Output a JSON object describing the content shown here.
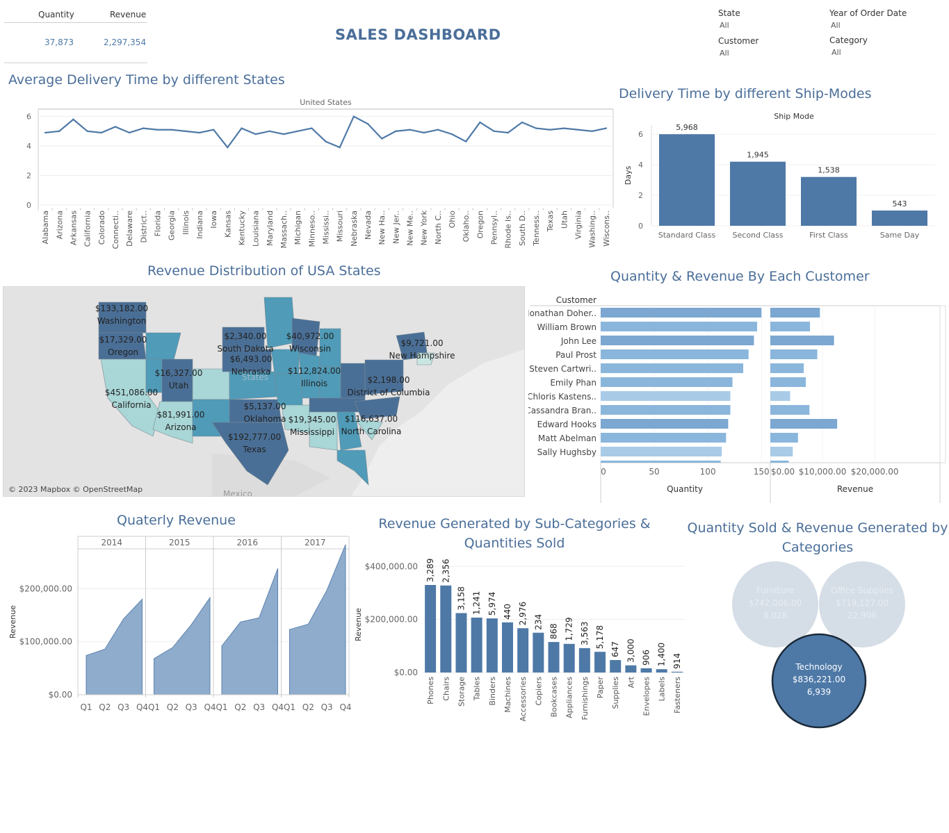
{
  "kpi": {
    "quantity_label": "Quantity",
    "revenue_label": "Revenue",
    "quantity_value": "37,873",
    "revenue_value": "2,297,354"
  },
  "title": "SALES DASHBOARD",
  "filters": [
    {
      "label": "State",
      "value": "All"
    },
    {
      "label": "Year of Order Date",
      "value": "All"
    },
    {
      "label": "Customer",
      "value": "All"
    },
    {
      "label": "Category",
      "value": "All"
    }
  ],
  "delivery_states": {
    "section_title": "Average Delivery Time by different States",
    "chart_data": {
      "type": "line",
      "header": "United States",
      "ylim": [
        0,
        6.5
      ],
      "yticks": [
        0,
        2,
        4,
        6
      ],
      "categories": [
        "Alabama",
        "Arizona",
        "Arkansas",
        "California",
        "Colorado",
        "Connecti..",
        "Delaware",
        "District..",
        "Florida",
        "Georgia",
        "Illinois",
        "Indiana",
        "Iowa",
        "Kansas",
        "Kentucky",
        "Louisiana",
        "Maryland",
        "Massach..",
        "Michigan",
        "Minneso..",
        "Mississi..",
        "Missouri",
        "Nebraska",
        "Nevada",
        "New Ha..",
        "New Jer..",
        "New Me..",
        "New York",
        "North C..",
        "Ohio",
        "Oklaho..",
        "Oregon",
        "Pennsyl..",
        "Rhode Is..",
        "South D..",
        "Tenness..",
        "Texas",
        "Utah",
        "Virginia",
        "Washing..",
        "Wiscons.."
      ],
      "values": [
        4.9,
        5.0,
        5.8,
        5.0,
        4.9,
        5.3,
        4.9,
        5.2,
        5.1,
        5.1,
        5.0,
        4.9,
        5.1,
        3.9,
        5.2,
        4.8,
        5.0,
        4.8,
        5.0,
        5.2,
        4.3,
        3.9,
        6.0,
        5.5,
        4.5,
        5.0,
        5.1,
        4.9,
        5.1,
        4.8,
        4.3,
        5.6,
        5.0,
        4.9,
        5.6,
        5.2,
        5.1,
        5.2,
        5.1,
        5.0,
        5.2
      ],
      "color": "#4e79a7"
    }
  },
  "ship_modes": {
    "section_title": "Delivery Time by different Ship-Modes",
    "chart_data": {
      "type": "bar",
      "header": "Ship Mode",
      "ylabel": "Days",
      "categories": [
        "Standard Class",
        "Second Class",
        "First Class",
        "Same Day"
      ],
      "values": [
        6.0,
        4.2,
        3.2,
        1.0
      ],
      "labels": [
        "5,968",
        "1,945",
        "1,538",
        "543"
      ],
      "ylim": [
        0,
        6.6
      ],
      "yticks": [
        0,
        2,
        4,
        6
      ],
      "color": "#4e79a7"
    }
  },
  "map": {
    "section_title": "Revenue Distribution of USA States",
    "labels": [
      {
        "value": "$133,182.00",
        "state": "Washington"
      },
      {
        "value": "$17,329.00",
        "state": "Oregon"
      },
      {
        "value": "$2,340.00",
        "state": "South Dakota"
      },
      {
        "value": "$40,972.00",
        "state": "Wisconsin"
      },
      {
        "value": "$9,721.00",
        "state": "New Hampshire"
      },
      {
        "value": "$6,493.00",
        "state": "Nebraska"
      },
      {
        "value": "$16,327.00",
        "state": "Utah"
      },
      {
        "value": "$112,824.00",
        "state": "Illinois"
      },
      {
        "value": "$2,198.00",
        "state": "District of Columbia"
      },
      {
        "value": "$451,086.00",
        "state": "California"
      },
      {
        "value": "$5,137.00",
        "state": "Oklahoma"
      },
      {
        "value": "$116,637.00",
        "state": "North Carolina"
      },
      {
        "value": "$81,991.00",
        "state": "Arizona"
      },
      {
        "value": "$19,345.00",
        "state": "Mississippi"
      },
      {
        "value": "$192,777.00",
        "state": "Texas"
      }
    ],
    "copyright": "© 2023 Mapbox © OpenStreetMap",
    "mexico": "Mexico",
    "states_faint": "States",
    "colors": {
      "dark": "#4a6f96",
      "mid": "#4f9bb8",
      "light": "#a9d6d6",
      "pale": "#c9e6e2"
    }
  },
  "customers": {
    "section_title": "Quantity & Revenue By Each Customer",
    "chart_data": {
      "type": "bar",
      "header": "Customer",
      "categories": [
        "Jonathan Doher..",
        "William Brown",
        "John Lee",
        "Paul Prost",
        "Steven Cartwri..",
        "Emily Phan",
        "Chloris Kastens..",
        "Cassandra Bran..",
        "Edward Hooks",
        "Matt Abelman",
        "Sally Hughsby"
      ],
      "quantity": [
        150,
        146,
        143,
        138,
        133,
        123,
        121,
        121,
        119,
        117,
        113
      ],
      "revenue": [
        9500,
        7600,
        12200,
        9000,
        6400,
        6800,
        3800,
        7500,
        12800,
        5300,
        4300
      ],
      "shade": [
        "dark",
        "mid",
        "dark",
        "mid",
        "mid",
        "mid",
        "light",
        "mid",
        "dark",
        "mid",
        "light"
      ],
      "quantity_axis": {
        "label": "Quantity",
        "ticks": [
          0,
          50,
          100,
          150
        ],
        "max": 157
      },
      "revenue_axis": {
        "label": "Revenue",
        "ticks": [
          0,
          10000,
          20000
        ],
        "tick_labels": [
          "$0.00",
          "$10,000.00",
          "$20,000.00"
        ],
        "max": 32500
      },
      "colors": {
        "dark": "#7ba7d1",
        "mid": "#8ab6dc",
        "light": "#a9cbe8"
      }
    }
  },
  "quarterly": {
    "section_title": "Quaterly Revenue",
    "chart_data": {
      "type": "area",
      "ylabel": "Revenue",
      "ylim": [
        0,
        275000
      ],
      "yticks": [
        0,
        100000,
        200000
      ],
      "ytick_labels": [
        "$0.00",
        "$100,000.00",
        "$200,000.00"
      ],
      "quarters": [
        "Q1",
        "Q2",
        "Q3",
        "Q4"
      ],
      "series": [
        {
          "year": "2014",
          "values": [
            74000,
            86000,
            143000,
            180000
          ]
        },
        {
          "year": "2015",
          "values": [
            68000,
            89000,
            132000,
            183000
          ]
        },
        {
          "year": "2016",
          "values": [
            92000,
            137000,
            145000,
            238000
          ]
        },
        {
          "year": "2017",
          "values": [
            123000,
            133000,
            197000,
            283000
          ]
        }
      ],
      "color": "#7b9ec4"
    }
  },
  "subcategories": {
    "section_title_line1": "Revenue Generated by Sub-Categories &",
    "section_title_line2": "Quantities Sold",
    "chart_data": {
      "type": "bar",
      "ylabel": "Revenue",
      "ylim": [
        0,
        440000
      ],
      "yticks": [
        0,
        200000,
        400000
      ],
      "ytick_labels": [
        "$0.00",
        "$200,000.00",
        "$400,000.00"
      ],
      "categories": [
        "Phones",
        "Chairs",
        "Storage",
        "Tables",
        "Binders",
        "Machines",
        "Accessories",
        "Copiers",
        "Bookcases",
        "Appliances",
        "Furnishings",
        "Paper",
        "Supplies",
        "Art",
        "Envelopes",
        "Labels",
        "Fasteners"
      ],
      "values": [
        330000,
        328000,
        224000,
        207000,
        204000,
        189000,
        167000,
        150000,
        115000,
        108000,
        92000,
        78000,
        47000,
        27000,
        16000,
        12500,
        3000
      ],
      "quantity_labels": [
        "3,289",
        "2,356",
        "3,158",
        "1,241",
        "5,974",
        "440",
        "2,976",
        "234",
        "868",
        "1,729",
        "3,563",
        "5,178",
        "647",
        "3,000",
        "906",
        "1,400",
        "914"
      ],
      "color": "#4e79a7"
    }
  },
  "categories": {
    "section_title_line1": "Quantity Sold & Revenue Generated by",
    "section_title_line2": "Categories",
    "chart_data": {
      "type": "bubble",
      "items": [
        {
          "name": "Furniture",
          "revenue": "$742,006.00",
          "quantity": "8,028",
          "selected": false
        },
        {
          "name": "Office Supplies",
          "revenue": "$719,127.00",
          "quantity": "22,906",
          "selected": false
        },
        {
          "name": "Technology",
          "revenue": "$836,221.00",
          "quantity": "6,939",
          "selected": true
        }
      ],
      "colors": {
        "faded": "#d5dde6",
        "faded_text": "#e8edf2",
        "selected": "#4e79a7",
        "selected_border": "#1c2a3a"
      }
    }
  }
}
